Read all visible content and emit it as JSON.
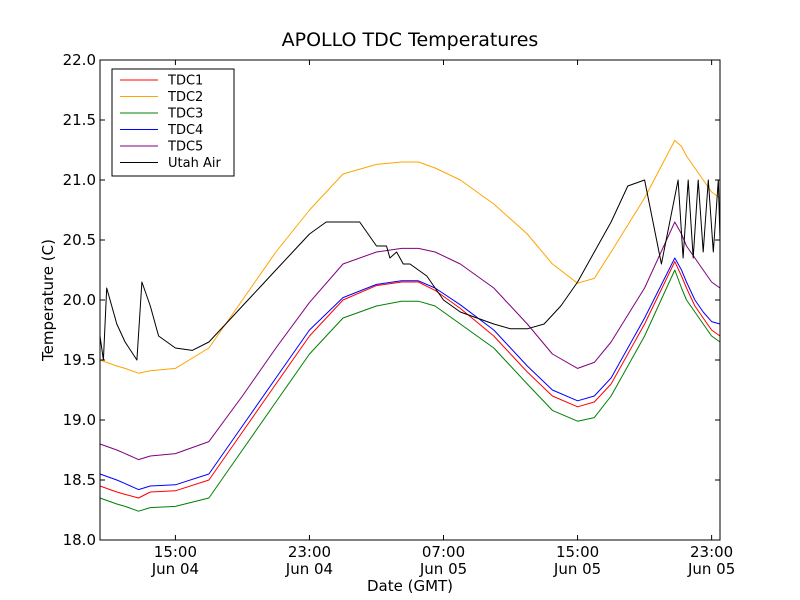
{
  "chart_data": {
    "type": "line",
    "title": "APOLLO TDC Temperatures",
    "xlabel": "Date (GMT)",
    "ylabel": "Temperature (C)",
    "xlim": [
      10.5,
      47.5
    ],
    "ylim": [
      18.0,
      22.0
    ],
    "x_unit": "hours since Jun 04 00:00 GMT",
    "yticks": [
      18.0,
      18.5,
      19.0,
      19.5,
      20.0,
      20.5,
      21.0,
      21.5,
      22.0
    ],
    "ytick_labels": [
      "18.0",
      "18.5",
      "19.0",
      "19.5",
      "20.0",
      "20.5",
      "21.0",
      "21.5",
      "22.0"
    ],
    "xticks": [
      {
        "x": 15,
        "time": "15:00",
        "date": "Jun 04"
      },
      {
        "x": 23,
        "time": "23:00",
        "date": "Jun 04"
      },
      {
        "x": 31,
        "time": "07:00",
        "date": "Jun 05"
      },
      {
        "x": 39,
        "time": "15:00",
        "date": "Jun 05"
      },
      {
        "x": 47,
        "time": "23:00",
        "date": "Jun 05"
      }
    ],
    "grid": false,
    "legend_position": "top-left",
    "series": [
      {
        "name": "TDC1",
        "color": "#ff0000",
        "x": [
          10.5,
          11.5,
          12.0,
          12.8,
          13.5,
          15.0,
          17.0,
          19.0,
          21.0,
          23.0,
          25.0,
          27.0,
          28.5,
          29.5,
          30.5,
          32.0,
          34.0,
          36.0,
          37.5,
          39.0,
          40.0,
          41.0,
          43.0,
          44.8,
          45.2,
          45.5,
          46.0,
          46.5,
          47.0,
          47.5
        ],
        "y": [
          18.45,
          18.4,
          18.38,
          18.35,
          18.4,
          18.41,
          18.5,
          18.9,
          19.3,
          19.7,
          20.0,
          20.12,
          20.15,
          20.15,
          20.08,
          19.93,
          19.7,
          19.4,
          19.2,
          19.11,
          19.15,
          19.3,
          19.8,
          20.32,
          20.2,
          20.1,
          19.95,
          19.85,
          19.75,
          19.7
        ]
      },
      {
        "name": "TDC2",
        "color": "#ffa500",
        "x": [
          10.5,
          11.5,
          12.0,
          12.8,
          13.5,
          15.0,
          17.0,
          19.0,
          21.0,
          23.0,
          25.0,
          27.0,
          28.5,
          29.5,
          30.5,
          32.0,
          34.0,
          36.0,
          37.5,
          39.0,
          40.0,
          41.0,
          43.0,
          44.8,
          45.2,
          45.5,
          46.0,
          46.5,
          47.0,
          47.5
        ],
        "y": [
          19.5,
          19.45,
          19.43,
          19.39,
          19.41,
          19.43,
          19.6,
          20.0,
          20.4,
          20.75,
          21.05,
          21.13,
          21.15,
          21.15,
          21.1,
          21.0,
          20.8,
          20.55,
          20.3,
          20.14,
          20.18,
          20.4,
          20.85,
          21.33,
          21.28,
          21.2,
          21.1,
          21.0,
          20.9,
          20.85
        ]
      },
      {
        "name": "TDC3",
        "color": "#008000",
        "x": [
          10.5,
          11.5,
          12.0,
          12.8,
          13.5,
          15.0,
          17.0,
          19.0,
          21.0,
          23.0,
          25.0,
          27.0,
          28.5,
          29.5,
          30.5,
          32.0,
          34.0,
          36.0,
          37.5,
          39.0,
          40.0,
          41.0,
          43.0,
          44.8,
          45.2,
          45.5,
          46.0,
          46.5,
          47.0,
          47.5
        ],
        "y": [
          18.35,
          18.3,
          18.28,
          18.24,
          18.27,
          18.28,
          18.35,
          18.75,
          19.15,
          19.55,
          19.85,
          19.95,
          19.99,
          19.99,
          19.95,
          19.8,
          19.6,
          19.3,
          19.08,
          18.99,
          19.02,
          19.2,
          19.7,
          20.25,
          20.1,
          20.0,
          19.9,
          19.8,
          19.7,
          19.65
        ]
      },
      {
        "name": "TDC4",
        "color": "#0000ff",
        "x": [
          10.5,
          11.5,
          12.0,
          12.8,
          13.5,
          15.0,
          17.0,
          19.0,
          21.0,
          23.0,
          25.0,
          27.0,
          28.5,
          29.5,
          30.5,
          32.0,
          34.0,
          36.0,
          37.5,
          39.0,
          40.0,
          41.0,
          43.0,
          44.8,
          45.2,
          45.5,
          46.0,
          46.5,
          47.0,
          47.5
        ],
        "y": [
          18.55,
          18.5,
          18.47,
          18.42,
          18.45,
          18.46,
          18.55,
          18.95,
          19.35,
          19.75,
          20.02,
          20.13,
          20.16,
          20.16,
          20.1,
          19.96,
          19.75,
          19.45,
          19.25,
          19.16,
          19.2,
          19.35,
          19.85,
          20.35,
          20.25,
          20.15,
          20.0,
          19.9,
          19.82,
          19.8
        ]
      },
      {
        "name": "TDC5",
        "color": "#800080",
        "x": [
          10.5,
          11.5,
          12.0,
          12.8,
          13.5,
          15.0,
          17.0,
          19.0,
          21.0,
          23.0,
          25.0,
          27.0,
          28.5,
          29.5,
          30.5,
          32.0,
          34.0,
          36.0,
          37.5,
          39.0,
          40.0,
          41.0,
          43.0,
          44.8,
          45.2,
          45.5,
          46.0,
          46.5,
          47.0,
          47.5
        ],
        "y": [
          18.8,
          18.75,
          18.72,
          18.67,
          18.7,
          18.72,
          18.82,
          19.2,
          19.6,
          19.98,
          20.3,
          20.4,
          20.43,
          20.43,
          20.4,
          20.3,
          20.1,
          19.8,
          19.55,
          19.43,
          19.48,
          19.65,
          20.1,
          20.65,
          20.55,
          20.45,
          20.35,
          20.25,
          20.15,
          20.1
        ]
      },
      {
        "name": "Utah Air",
        "color": "#000000",
        "x": [
          10.5,
          10.7,
          10.9,
          11.5,
          12.0,
          12.7,
          13.0,
          13.5,
          14.0,
          15.0,
          16.0,
          17.0,
          18.0,
          19.0,
          20.0,
          21.0,
          22.0,
          23.0,
          24.0,
          25.0,
          26.0,
          26.5,
          27.0,
          27.6,
          27.8,
          28.2,
          28.6,
          29.0,
          29.5,
          30.0,
          30.5,
          31.0,
          32.0,
          33.0,
          34.0,
          35.0,
          36.0,
          37.0,
          38.0,
          39.0,
          40.0,
          41.0,
          42.0,
          43.0,
          44.0,
          45.0,
          45.3,
          45.6,
          45.9,
          46.2,
          46.5,
          46.8,
          47.1,
          47.4,
          47.5
        ],
        "y": [
          19.7,
          19.5,
          20.1,
          19.8,
          19.65,
          19.5,
          20.15,
          19.95,
          19.7,
          19.6,
          19.58,
          19.65,
          19.8,
          19.95,
          20.1,
          20.25,
          20.4,
          20.55,
          20.65,
          20.65,
          20.65,
          20.55,
          20.45,
          20.45,
          20.35,
          20.4,
          20.3,
          20.3,
          20.25,
          20.2,
          20.1,
          20.0,
          19.9,
          19.85,
          19.8,
          19.76,
          19.76,
          19.8,
          19.95,
          20.15,
          20.4,
          20.65,
          20.95,
          21.0,
          20.3,
          21.0,
          20.35,
          21.0,
          20.35,
          21.0,
          20.4,
          21.0,
          20.4,
          21.0,
          20.5
        ]
      }
    ]
  }
}
